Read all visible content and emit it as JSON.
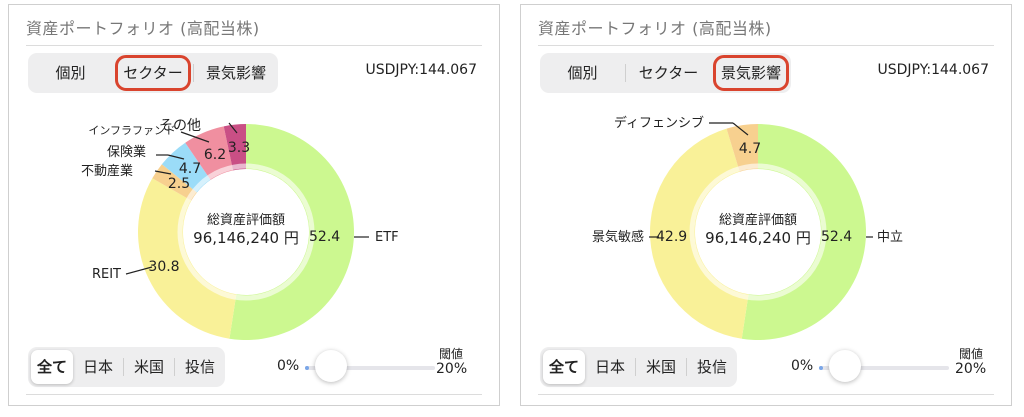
{
  "colors": {
    "etf": "#ccf890",
    "reit": "#f9f198",
    "real_estate": "#f7d08f",
    "insurance": "#9bdcf8",
    "infra_fund": "#f08fa0",
    "other": "#c94f85",
    "highlight": "#d9442e",
    "slider_fill": "#7aa6e8"
  },
  "left": {
    "title": "資産ポートフォリオ (高配当株)",
    "tabs": [
      {
        "label": "個別"
      },
      {
        "label": "セクター"
      },
      {
        "label": "景気影響"
      }
    ],
    "selected_tab": "セクター",
    "usdjpy": "USDJPY:144.067",
    "center_title": "総資産評価額",
    "center_value": "96,146,240 円",
    "filters": [
      {
        "label": "全て"
      },
      {
        "label": "日本"
      },
      {
        "label": "米国"
      },
      {
        "label": "投信"
      }
    ],
    "selected_filter": "全て",
    "slider_min": "0%",
    "threshold_label": "閾値",
    "threshold_value": "20%",
    "slider_fraction": 0.03
  },
  "right": {
    "title": "資産ポートフォリオ (高配当株)",
    "tabs": [
      {
        "label": "個別"
      },
      {
        "label": "セクター"
      },
      {
        "label": "景気影響"
      }
    ],
    "selected_tab": "景気影響",
    "usdjpy": "USDJPY:144.067",
    "center_title": "総資産評価額",
    "center_value": "96,146,240 円",
    "filters": [
      {
        "label": "全て"
      },
      {
        "label": "日本"
      },
      {
        "label": "米国"
      },
      {
        "label": "投信"
      }
    ],
    "selected_filter": "全て",
    "slider_min": "0%",
    "threshold_label": "閾値",
    "threshold_value": "20%",
    "slider_fraction": 0.03
  },
  "chart_data": [
    {
      "type": "pie",
      "slices": [
        {
          "label": "ETF",
          "value": 52.4,
          "value_label": "52.4",
          "color": "#ccf890"
        },
        {
          "label": "REIT",
          "value": 30.8,
          "value_label": "30.8",
          "color": "#f9f198"
        },
        {
          "label": "不動産業",
          "value": 2.5,
          "value_label": "2.5",
          "color": "#f7d08f"
        },
        {
          "label": "保険業",
          "value": 4.7,
          "value_label": "4.7",
          "color": "#9bdcf8"
        },
        {
          "label": "インフラファンド",
          "value": 6.2,
          "value_label": "6.2",
          "color": "#f08fa0"
        },
        {
          "label": "その他",
          "value": 3.3,
          "value_label": "3.3",
          "color": "#c94f85"
        }
      ]
    },
    {
      "type": "pie",
      "slices": [
        {
          "label": "中立",
          "value": 52.4,
          "value_label": "52.4",
          "color": "#ccf890"
        },
        {
          "label": "景気敏感",
          "value": 42.9,
          "value_label": "42.9",
          "color": "#f9f198"
        },
        {
          "label": "ディフェンシブ",
          "value": 4.7,
          "value_label": "4.7",
          "color": "#f7d08f"
        }
      ]
    }
  ]
}
